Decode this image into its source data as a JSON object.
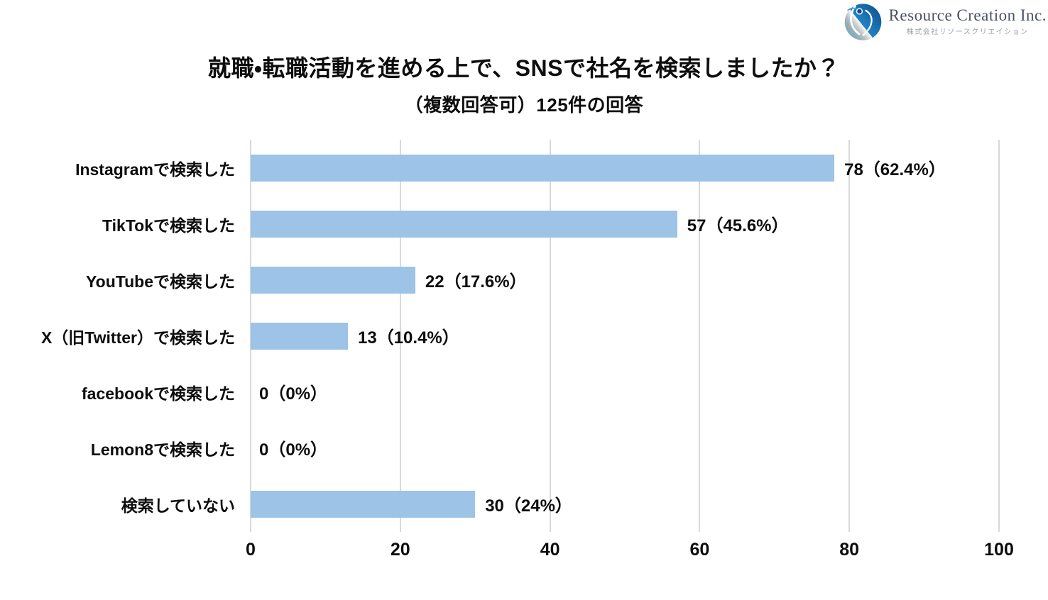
{
  "logo": {
    "company_name": "Resource Creation Inc.",
    "company_name_ja": "株式会社リソースクリエイション"
  },
  "chart_data": {
    "type": "bar",
    "orientation": "horizontal",
    "title": "就職・転職活動を進める上で、SNSで社名を検索しましたか？",
    "subtitle": "（複数回答可）125件の回答",
    "total_responses": 125,
    "categories": [
      "Instagramで検索した",
      "TikTokで検索した",
      "YouTubeで検索した",
      "X（旧Twitter）で検索した",
      "facebookで検索した",
      "Lemon8で検索した",
      "検索していない"
    ],
    "values": [
      78,
      57,
      22,
      13,
      0,
      0,
      30
    ],
    "percentages": [
      62.4,
      45.6,
      17.6,
      10.4,
      0,
      0,
      24
    ],
    "data_labels": [
      "78（62.4%）",
      "57（45.6%）",
      "22（17.6%）",
      "13（10.4%）",
      "0（0%）",
      "0（0%）",
      "30（24%）"
    ],
    "x_ticks": [
      0,
      20,
      40,
      60,
      80,
      100
    ],
    "xlim": [
      0,
      100
    ],
    "grid": true,
    "legend": false,
    "bar_color": "#9DC3E6",
    "gridline_color": "#D9D9D9",
    "text_color": "#0D0D0D"
  }
}
